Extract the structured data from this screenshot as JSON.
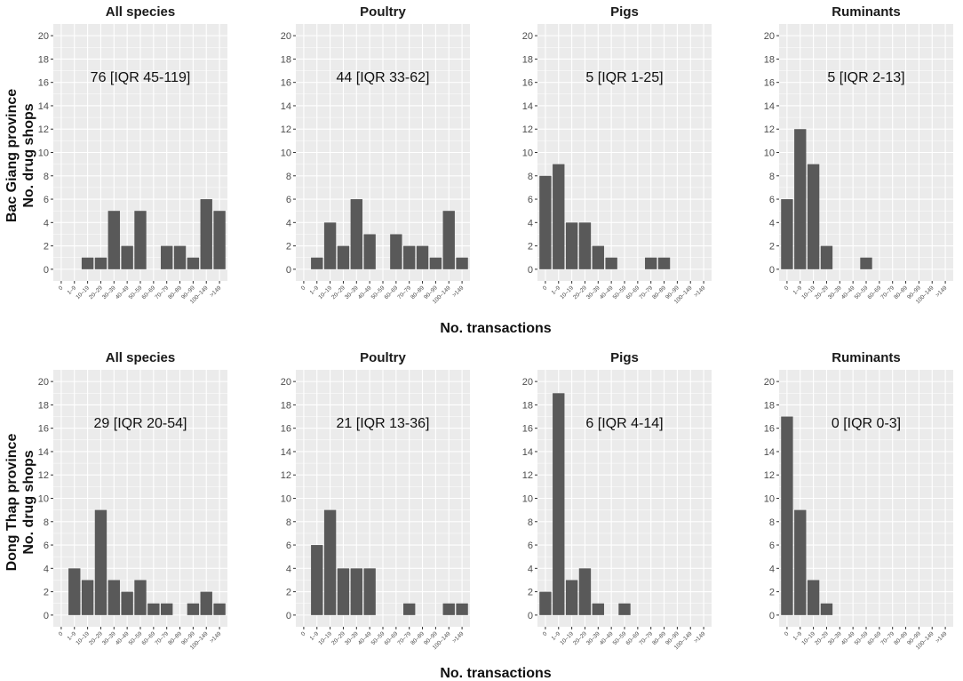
{
  "colors": {
    "panel_bg": "#ebebeb",
    "grid": "#ffffff",
    "bar": "#595959",
    "text": "#1a1a1a",
    "tick": "#4d4d4d"
  },
  "rows": [
    {
      "ylabel_line1": "Bac Giang province",
      "ylabel_line2": "No. drug shops",
      "xlabel": "No. transactions"
    },
    {
      "ylabel_line1": "Dong Thap province",
      "ylabel_line2": "No. drug shops",
      "xlabel": "No. transactions"
    }
  ],
  "chart_data": [
    {
      "type": "bar",
      "row": 0,
      "col": 0,
      "title": "All species",
      "annotation": "76 [IQR 45-119]",
      "categories": [
        "0",
        "1–9",
        "10–19",
        "20–29",
        "30–39",
        "40–49",
        "50–59",
        "60–69",
        "70–79",
        "80–89",
        "90–99",
        "100–149",
        ">149"
      ],
      "values": [
        0,
        0,
        1,
        1,
        5,
        2,
        5,
        0,
        2,
        2,
        1,
        6,
        5
      ],
      "ylim": [
        0,
        20
      ],
      "yticks": [
        0,
        2,
        4,
        6,
        8,
        10,
        12,
        14,
        16,
        18,
        20
      ]
    },
    {
      "type": "bar",
      "row": 0,
      "col": 1,
      "title": "Poultry",
      "annotation": "44 [IQR 33-62]",
      "categories": [
        "0",
        "1–9",
        "10–19",
        "20–29",
        "30–39",
        "40–49",
        "50–59",
        "60–69",
        "70–79",
        "80–89",
        "90–99",
        "100–149",
        ">149"
      ],
      "values": [
        0,
        1,
        4,
        2,
        6,
        3,
        0,
        3,
        2,
        2,
        1,
        5,
        1
      ],
      "ylim": [
        0,
        20
      ],
      "yticks": [
        0,
        2,
        4,
        6,
        8,
        10,
        12,
        14,
        16,
        18,
        20
      ]
    },
    {
      "type": "bar",
      "row": 0,
      "col": 2,
      "title": "Pigs",
      "annotation": "5 [IQR 1-25]",
      "categories": [
        "0",
        "1–9",
        "10–19",
        "20–29",
        "30–39",
        "40–49",
        "50–59",
        "60–69",
        "70–79",
        "80–89",
        "90–99",
        "100–149",
        ">149"
      ],
      "values": [
        8,
        9,
        4,
        4,
        2,
        1,
        0,
        0,
        1,
        1,
        0,
        0,
        0
      ],
      "ylim": [
        0,
        20
      ],
      "yticks": [
        0,
        2,
        4,
        6,
        8,
        10,
        12,
        14,
        16,
        18,
        20
      ]
    },
    {
      "type": "bar",
      "row": 0,
      "col": 3,
      "title": "Ruminants",
      "annotation": "5 [IQR 2-13]",
      "categories": [
        "0",
        "1–9",
        "10–19",
        "20–29",
        "30–39",
        "40–49",
        "50–59",
        "60–69",
        "70–79",
        "80–89",
        "90–99",
        "100–149",
        ">149"
      ],
      "values": [
        6,
        12,
        9,
        2,
        0,
        0,
        1,
        0,
        0,
        0,
        0,
        0,
        0
      ],
      "ylim": [
        0,
        20
      ],
      "yticks": [
        0,
        2,
        4,
        6,
        8,
        10,
        12,
        14,
        16,
        18,
        20
      ]
    },
    {
      "type": "bar",
      "row": 1,
      "col": 0,
      "title": "All species",
      "annotation": "29 [IQR 20-54]",
      "categories": [
        "0",
        "1–9",
        "10–19",
        "20–29",
        "30–39",
        "40–49",
        "50–59",
        "60–69",
        "70–79",
        "80–89",
        "90–99",
        "100–149",
        ">149"
      ],
      "values": [
        0,
        4,
        3,
        9,
        3,
        2,
        3,
        1,
        1,
        0,
        1,
        2,
        1
      ],
      "ylim": [
        0,
        20
      ],
      "yticks": [
        0,
        2,
        4,
        6,
        8,
        10,
        12,
        14,
        16,
        18,
        20
      ]
    },
    {
      "type": "bar",
      "row": 1,
      "col": 1,
      "title": "Poultry",
      "annotation": "21 [IQR 13-36]",
      "categories": [
        "0",
        "1–9",
        "10–19",
        "20–29",
        "30–39",
        "40–49",
        "50–59",
        "60–69",
        "70–79",
        "80–89",
        "90–99",
        "100–149",
        ">149"
      ],
      "values": [
        0,
        6,
        9,
        4,
        4,
        4,
        0,
        0,
        1,
        0,
        0,
        1,
        1
      ],
      "ylim": [
        0,
        20
      ],
      "yticks": [
        0,
        2,
        4,
        6,
        8,
        10,
        12,
        14,
        16,
        18,
        20
      ]
    },
    {
      "type": "bar",
      "row": 1,
      "col": 2,
      "title": "Pigs",
      "annotation": "6 [IQR 4-14]",
      "categories": [
        "0",
        "1–9",
        "10–19",
        "20–29",
        "30–39",
        "40–49",
        "50–59",
        "60–69",
        "70–79",
        "80–89",
        "90–99",
        "100–149",
        ">149"
      ],
      "values": [
        2,
        19,
        3,
        4,
        1,
        0,
        1,
        0,
        0,
        0,
        0,
        0,
        0
      ],
      "ylim": [
        0,
        20
      ],
      "yticks": [
        0,
        2,
        4,
        6,
        8,
        10,
        12,
        14,
        16,
        18,
        20
      ]
    },
    {
      "type": "bar",
      "row": 1,
      "col": 3,
      "title": "Ruminants",
      "annotation": "0 [IQR 0-3]",
      "categories": [
        "0",
        "1–9",
        "10–19",
        "20–29",
        "30–39",
        "40–49",
        "50–59",
        "60–69",
        "70–79",
        "80–89",
        "90–99",
        "100–149",
        ">149"
      ],
      "values": [
        17,
        9,
        3,
        1,
        0,
        0,
        0,
        0,
        0,
        0,
        0,
        0,
        0
      ],
      "ylim": [
        0,
        20
      ],
      "yticks": [
        0,
        2,
        4,
        6,
        8,
        10,
        12,
        14,
        16,
        18,
        20
      ]
    }
  ]
}
